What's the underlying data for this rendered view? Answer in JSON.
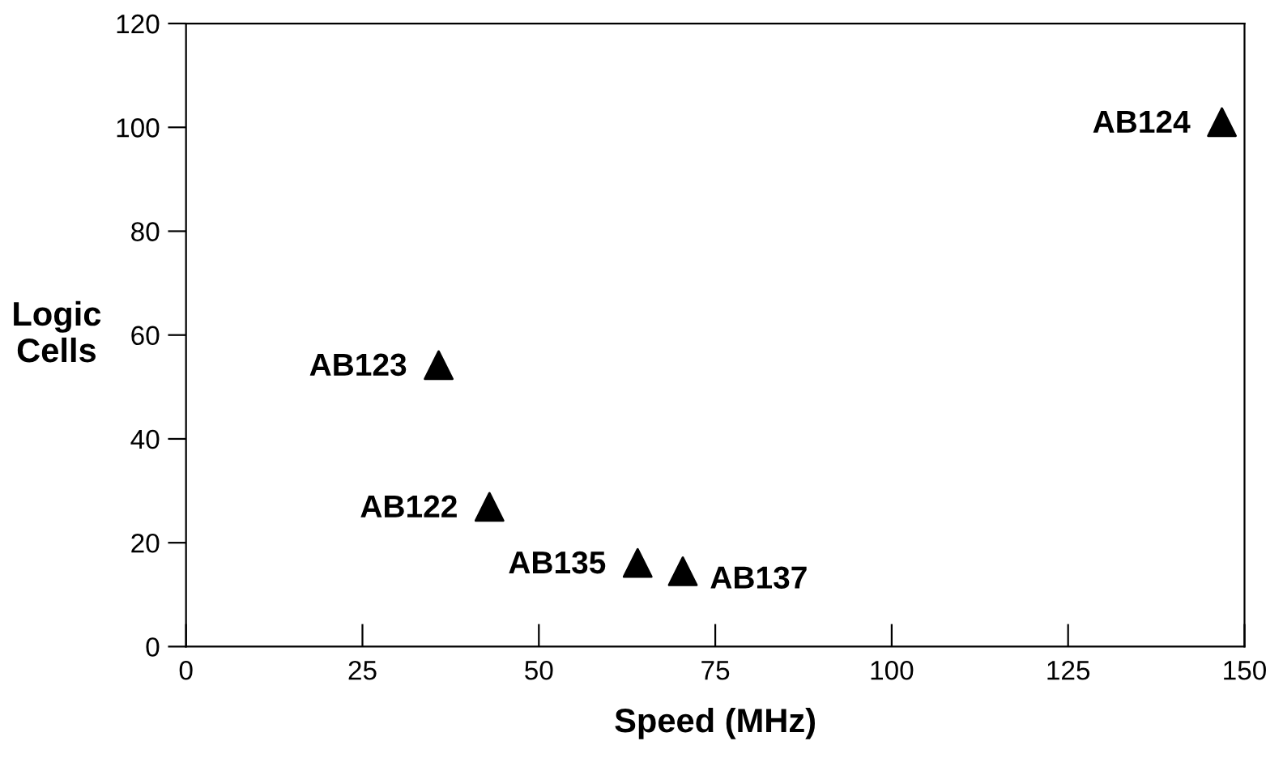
{
  "chart_data": {
    "type": "scatter",
    "xlabel": "Speed (MHz)",
    "ylabel": "Logic\nCells",
    "x": [
      146.8,
      35.8,
      43,
      64,
      70.4
    ],
    "values": [
      101,
      54.2,
      26.9,
      16.1,
      14.5
    ],
    "color": "#000000",
    "marker": "triangle",
    "xlim": [
      0,
      150
    ],
    "xticks": [
      0,
      25,
      50,
      75,
      100,
      125,
      150
    ],
    "ylim": [
      0,
      120
    ],
    "yticks": [
      0,
      20,
      40,
      60,
      80,
      100,
      120
    ],
    "grid": false,
    "legend": false,
    "annotations": [
      {
        "text": "AB124",
        "x": 146.8,
        "y": 101
      },
      {
        "text": "AB123",
        "x": 35.8,
        "y": 54.2
      },
      {
        "text": "AB122",
        "x": 43,
        "y": 26.9
      },
      {
        "text": "AB135",
        "x": 64,
        "y": 16.1
      },
      {
        "text": "AB137",
        "x": 70.4,
        "y": 14.5
      }
    ]
  }
}
